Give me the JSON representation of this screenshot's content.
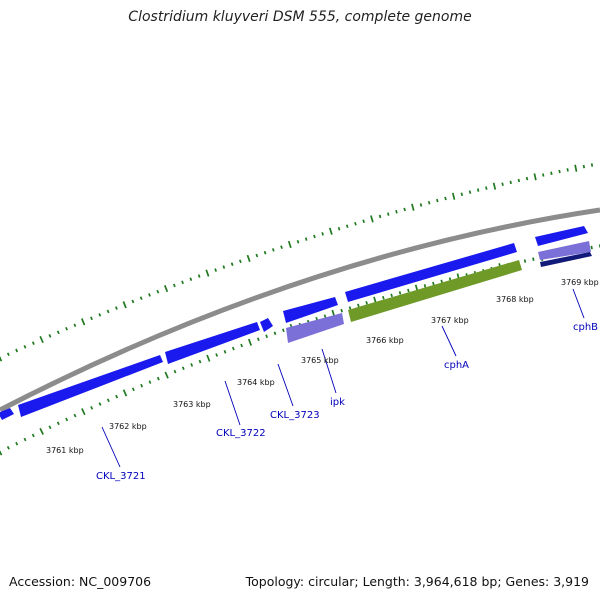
{
  "title": "Clostridium kluyveri DSM 555, complete genome",
  "footer": {
    "accession": "Accession: NC_009706",
    "summary": "Topology: circular; Length: 3,964,618 bp; Genes: 3,919"
  },
  "colors": {
    "backbone": "#8c8c8c",
    "cds": "#1a1aee",
    "cds_light": "#7b70d8",
    "cds_green": "#6f9a28",
    "cds_dark": "#121a7a",
    "tick": "#1f7a1f",
    "label": "#0000bb"
  },
  "scale_labels": [
    "3761 kbp",
    "3762 kbp",
    "3763 kbp",
    "3764 kbp",
    "3765 kbp",
    "3766 kbp",
    "3767 kbp",
    "3768 kbp",
    "3769 kbp"
  ],
  "gene_labels": [
    "CKL_3721",
    "CKL_3722",
    "CKL_3723",
    "ipk",
    "cphA",
    "cphB"
  ]
}
